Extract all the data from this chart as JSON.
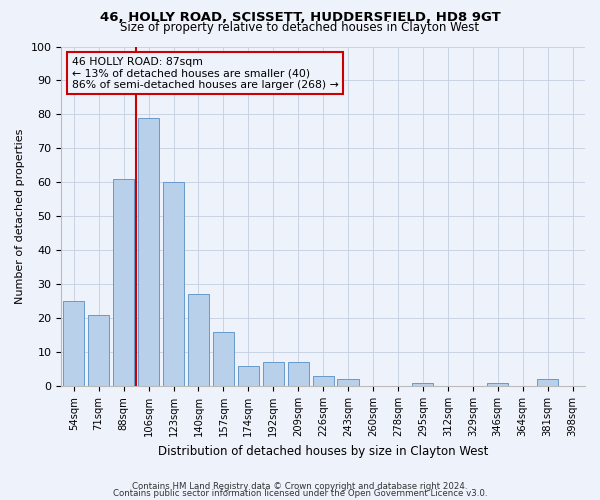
{
  "title": "46, HOLLY ROAD, SCISSETT, HUDDERSFIELD, HD8 9GT",
  "subtitle": "Size of property relative to detached houses in Clayton West",
  "xlabel": "Distribution of detached houses by size in Clayton West",
  "ylabel": "Number of detached properties",
  "footnote1": "Contains HM Land Registry data © Crown copyright and database right 2024.",
  "footnote2": "Contains public sector information licensed under the Open Government Licence v3.0.",
  "annotation_title": "46 HOLLY ROAD: 87sqm",
  "annotation_line1": "← 13% of detached houses are smaller (40)",
  "annotation_line2": "86% of semi-detached houses are larger (268) →",
  "bar_color": "#b8d0ea",
  "bar_edge_color": "#6699cc",
  "vline_color": "#cc0000",
  "annotation_box_edge_color": "#cc0000",
  "background_color": "#eef2fb",
  "categories": [
    "54sqm",
    "71sqm",
    "88sqm",
    "106sqm",
    "123sqm",
    "140sqm",
    "157sqm",
    "174sqm",
    "192sqm",
    "209sqm",
    "226sqm",
    "243sqm",
    "260sqm",
    "278sqm",
    "295sqm",
    "312sqm",
    "329sqm",
    "346sqm",
    "364sqm",
    "381sqm",
    "398sqm"
  ],
  "values": [
    25,
    21,
    61,
    79,
    60,
    27,
    16,
    6,
    7,
    7,
    3,
    2,
    0,
    0,
    1,
    0,
    0,
    1,
    0,
    2,
    0
  ],
  "ylim": [
    0,
    100
  ],
  "yticks": [
    0,
    10,
    20,
    30,
    40,
    50,
    60,
    70,
    80,
    90,
    100
  ],
  "vline_x": 2.5,
  "bar_width": 0.85
}
